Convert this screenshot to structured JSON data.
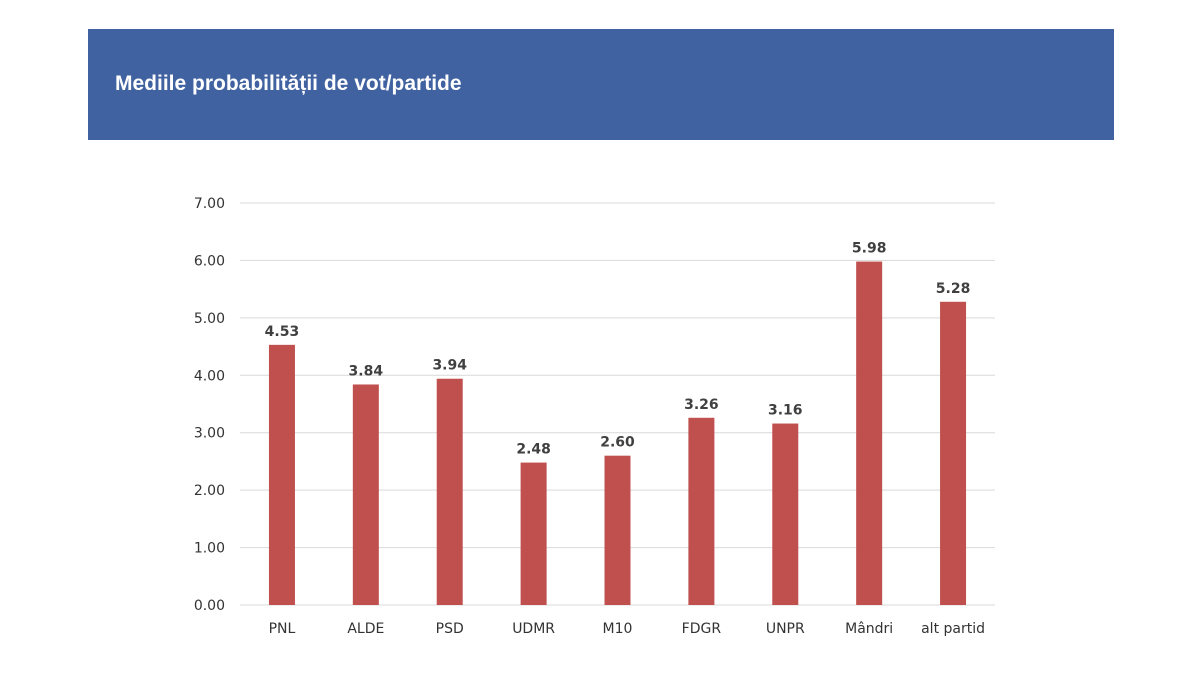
{
  "header": {
    "title": "Mediile probabilității de vot/partide"
  },
  "colors": {
    "banner": "#4062a0",
    "bar": "#c0504d",
    "grid": "#d9d9d9"
  },
  "chart_data": {
    "type": "bar",
    "title": "",
    "xlabel": "",
    "ylabel": "",
    "categories": [
      "PNL",
      "ALDE",
      "PSD",
      "UDMR",
      "M10",
      "FDGR",
      "UNPR",
      "Mândri",
      "alt partid"
    ],
    "values": [
      4.53,
      3.84,
      3.94,
      2.48,
      2.6,
      3.26,
      3.16,
      5.98,
      5.28
    ],
    "value_labels": [
      "4.53",
      "3.84",
      "3.94",
      "2.48",
      "2.60",
      "3.26",
      "3.16",
      "5.98",
      "5.28"
    ],
    "ylim": [
      0,
      7
    ],
    "yticks": [
      "0.00",
      "1.00",
      "2.00",
      "3.00",
      "4.00",
      "5.00",
      "6.00",
      "7.00"
    ],
    "grid": true,
    "legend": "none"
  }
}
